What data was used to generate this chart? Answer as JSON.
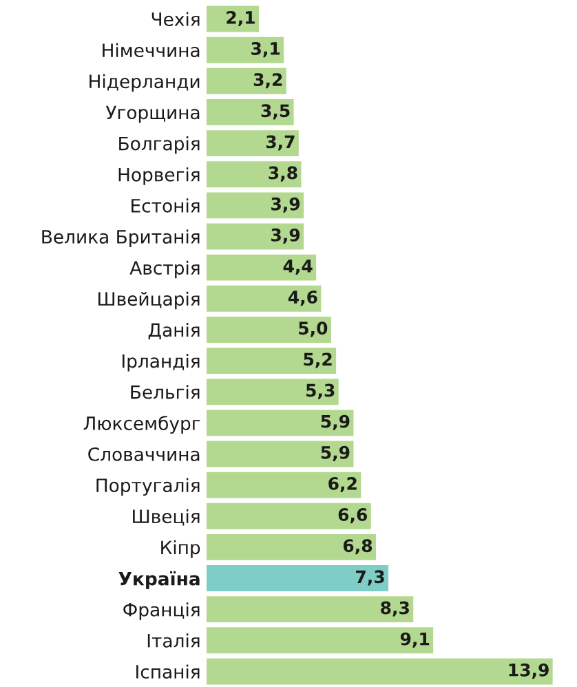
{
  "chart_data": {
    "type": "bar",
    "orientation": "horizontal",
    "categories": [
      "Чехія",
      "Німеччина",
      "Нідерланди",
      "Угорщина",
      "Болгарія",
      "Норвегія",
      "Естонія",
      "Велика Британія",
      "Австрія",
      "Швейцарія",
      "Данія",
      "Ірландія",
      "Бельгія",
      "Люксембург",
      "Словаччина",
      "Португалія",
      "Швеція",
      "Кіпр",
      "Україна",
      "Франція",
      "Італія",
      "Іспанія"
    ],
    "values": [
      2.1,
      3.1,
      3.2,
      3.5,
      3.7,
      3.8,
      3.9,
      3.9,
      4.4,
      4.6,
      5.0,
      5.2,
      5.3,
      5.9,
      5.9,
      6.2,
      6.6,
      6.8,
      7.3,
      8.3,
      9.1,
      13.9
    ],
    "value_labels": [
      "2,1",
      "3,1",
      "3,2",
      "3,5",
      "3,7",
      "3,8",
      "3,9",
      "3,9",
      "4,4",
      "4,6",
      "5,0",
      "5,2",
      "5,3",
      "5,9",
      "5,9",
      "6,2",
      "6,6",
      "6,8",
      "7,3",
      "8,3",
      "9,1",
      "13,9"
    ],
    "colors": [
      "#b3d88f",
      "#b3d88f",
      "#b3d88f",
      "#b3d88f",
      "#b3d88f",
      "#b3d88f",
      "#b3d88f",
      "#b3d88f",
      "#b3d88f",
      "#b3d88f",
      "#b3d88f",
      "#b3d88f",
      "#b3d88f",
      "#b3d88f",
      "#b3d88f",
      "#b3d88f",
      "#b3d88f",
      "#b3d88f",
      "#7ecdc6",
      "#b3d88f",
      "#b3d88f",
      "#b3d88f"
    ],
    "grid": false,
    "legend": false
  }
}
